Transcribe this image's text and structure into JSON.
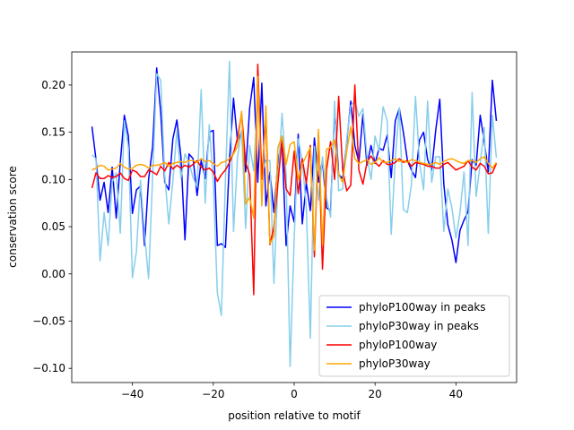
{
  "chart_data": {
    "type": "line",
    "title": "",
    "xlabel": "position relative to motif",
    "ylabel": "conservation score",
    "xlim": [
      -55,
      55
    ],
    "ylim": [
      -0.115,
      0.235
    ],
    "xticks": [
      -40,
      -20,
      0,
      20,
      40
    ],
    "xtick_labels": [
      "−40",
      "−20",
      "0",
      "20",
      "40"
    ],
    "yticks": [
      -0.1,
      -0.05,
      0.0,
      0.05,
      0.1,
      0.15,
      0.2
    ],
    "ytick_labels": [
      "−0.10",
      "−0.05",
      "0.00",
      "0.05",
      "0.10",
      "0.15",
      "0.20"
    ],
    "grid": false,
    "legend_position": "lower-right",
    "x_start": -50,
    "x_end": 50,
    "series": [
      {
        "name": "phyloP100way in peaks",
        "color": "#0000ff",
        "values": [
          0.156,
          0.121,
          0.078,
          0.097,
          0.065,
          0.113,
          0.059,
          0.118,
          0.168,
          0.146,
          0.064,
          0.089,
          0.093,
          0.03,
          0.1,
          0.135,
          0.218,
          0.171,
          0.097,
          0.089,
          0.143,
          0.163,
          0.124,
          0.036,
          0.127,
          0.122,
          0.083,
          0.12,
          0.101,
          0.15,
          0.152,
          0.03,
          0.032,
          0.028,
          0.12,
          0.186,
          0.14,
          0.15,
          0.108,
          0.176,
          0.208,
          0.097,
          0.202,
          0.072,
          0.108,
          0.065,
          0.12,
          0.14,
          0.03,
          0.072,
          0.055,
          0.148,
          0.053,
          0.096,
          0.067,
          0.144,
          0.097,
          0.12,
          0.07,
          0.067,
          0.175,
          0.105,
          0.101,
          0.14,
          0.183,
          0.136,
          0.118,
          0.169,
          0.115,
          0.136,
          0.117,
          0.133,
          0.131,
          0.147,
          0.102,
          0.162,
          0.175,
          0.15,
          0.12,
          0.11,
          0.102,
          0.142,
          0.15,
          0.121,
          0.11,
          0.152,
          0.185,
          0.095,
          0.052,
          0.036,
          0.012,
          0.046,
          0.057,
          0.066,
          0.121,
          0.115,
          0.168,
          0.14,
          0.108,
          0.205,
          0.162
        ]
      },
      {
        "name": "phyloP30way in peaks",
        "color": "#87ceeb",
        "values": [
          0.126,
          0.122,
          0.014,
          0.065,
          0.03,
          0.097,
          0.107,
          0.043,
          0.162,
          0.134,
          -0.004,
          0.024,
          0.099,
          0.042,
          -0.005,
          0.103,
          0.212,
          0.205,
          0.104,
          0.053,
          0.098,
          0.152,
          0.101,
          0.127,
          0.118,
          0.102,
          0.092,
          0.195,
          0.075,
          0.158,
          0.097,
          -0.02,
          -0.044,
          0.1,
          0.225,
          0.045,
          0.124,
          0.152,
          0.048,
          0.136,
          0.109,
          0.19,
          0.105,
          0.12,
          0.12,
          -0.01,
          0.101,
          0.17,
          0.106,
          -0.098,
          0.037,
          0.143,
          0.12,
          0.07,
          -0.068,
          0.135,
          0.078,
          0.124,
          0.081,
          0.06,
          0.183,
          0.088,
          0.09,
          0.143,
          0.178,
          0.183,
          0.167,
          0.175,
          0.125,
          0.1,
          0.146,
          0.13,
          0.177,
          0.162,
          0.042,
          0.122,
          0.176,
          0.068,
          0.065,
          0.095,
          0.188,
          0.118,
          0.089,
          0.183,
          0.097,
          0.124,
          0.124,
          0.045,
          0.09,
          0.07,
          0.038,
          0.065,
          0.108,
          0.03,
          0.192,
          0.082,
          0.117,
          0.155,
          0.043,
          0.168,
          0.123
        ]
      },
      {
        "name": "phyloP100way",
        "color": "#ff0000",
        "values": [
          0.091,
          0.107,
          0.101,
          0.101,
          0.104,
          0.102,
          0.103,
          0.107,
          0.101,
          0.099,
          0.11,
          0.108,
          0.103,
          0.103,
          0.11,
          0.108,
          0.105,
          0.114,
          0.109,
          0.118,
          0.111,
          0.115,
          0.112,
          0.115,
          0.113,
          0.116,
          0.12,
          0.113,
          0.11,
          0.112,
          0.108,
          0.098,
          0.105,
          0.11,
          0.118,
          0.128,
          0.144,
          0.17,
          0.118,
          0.105,
          -0.022,
          0.222,
          0.1,
          0.166,
          0.031,
          0.05,
          0.097,
          0.142,
          0.09,
          0.083,
          0.13,
          0.085,
          0.122,
          0.096,
          0.136,
          0.018,
          0.148,
          0.005,
          0.11,
          0.14,
          0.1,
          0.188,
          0.11,
          0.088,
          0.094,
          0.2,
          0.11,
          0.095,
          0.118,
          0.125,
          0.118,
          0.114,
          0.12,
          0.116,
          0.116,
          0.118,
          0.122,
          0.118,
          0.12,
          0.114,
          0.118,
          0.117,
          0.116,
          0.114,
          0.114,
          0.112,
          0.112,
          0.116,
          0.118,
          0.114,
          0.11,
          0.112,
          0.114,
          0.12,
          0.113,
          0.11,
          0.117,
          0.114,
          0.106,
          0.107,
          0.117
        ]
      },
      {
        "name": "phyloP30way",
        "color": "#ffa500",
        "values": [
          0.11,
          0.112,
          0.115,
          0.114,
          0.11,
          0.111,
          0.112,
          0.117,
          0.113,
          0.111,
          0.112,
          0.115,
          0.116,
          0.115,
          0.112,
          0.115,
          0.115,
          0.116,
          0.118,
          0.114,
          0.117,
          0.118,
          0.119,
          0.118,
          0.12,
          0.12,
          0.118,
          0.122,
          0.119,
          0.12,
          0.117,
          0.114,
          0.118,
          0.119,
          0.122,
          0.127,
          0.135,
          0.172,
          0.074,
          0.081,
          0.059,
          0.209,
          0.072,
          0.178,
          0.032,
          0.04,
          0.134,
          0.146,
          0.116,
          0.137,
          0.14,
          0.1,
          0.116,
          0.125,
          0.134,
          0.025,
          0.153,
          0.031,
          0.132,
          0.134,
          0.142,
          0.105,
          0.097,
          0.13,
          0.156,
          0.122,
          0.117,
          0.119,
          0.121,
          0.116,
          0.118,
          0.123,
          0.118,
          0.118,
          0.12,
          0.122,
          0.119,
          0.12,
          0.118,
          0.121,
          0.12,
          0.118,
          0.117,
          0.116,
          0.116,
          0.118,
          0.116,
          0.119,
          0.121,
          0.122,
          0.12,
          0.118,
          0.117,
          0.12,
          0.12,
          0.118,
          0.122,
          0.124,
          0.117,
          0.112,
          0.118
        ]
      }
    ]
  }
}
